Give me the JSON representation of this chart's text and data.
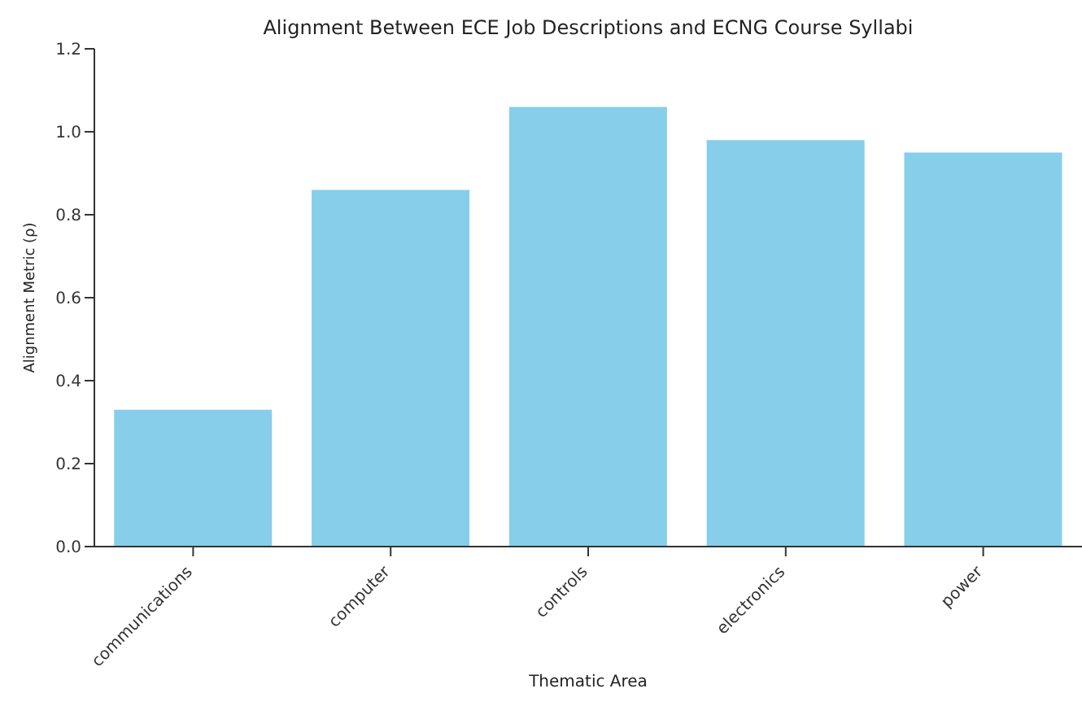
{
  "chart_data": {
    "type": "bar",
    "title": "Alignment Between ECE Job Descriptions and ECNG Course Syllabi",
    "xlabel": "Thematic Area",
    "ylabel": "Alignment Metric (ρ)",
    "categories": [
      "communications",
      "computer",
      "controls",
      "electronics",
      "power"
    ],
    "values": [
      0.33,
      0.86,
      1.06,
      0.98,
      0.95
    ],
    "color": "#87ceeb",
    "ylim": [
      0,
      1.2
    ],
    "yticks": [
      {
        "value": 0,
        "label": "0.0"
      },
      {
        "value": 0.2,
        "label": "0.2"
      },
      {
        "value": 0.4,
        "label": "0.4"
      },
      {
        "value": 0.6,
        "label": "0.6"
      },
      {
        "value": 0.8,
        "label": "0.8"
      },
      {
        "value": 1,
        "label": "1.0"
      },
      {
        "value": 1.2,
        "label": "1.2"
      }
    ],
    "grid": false,
    "legend": false
  }
}
